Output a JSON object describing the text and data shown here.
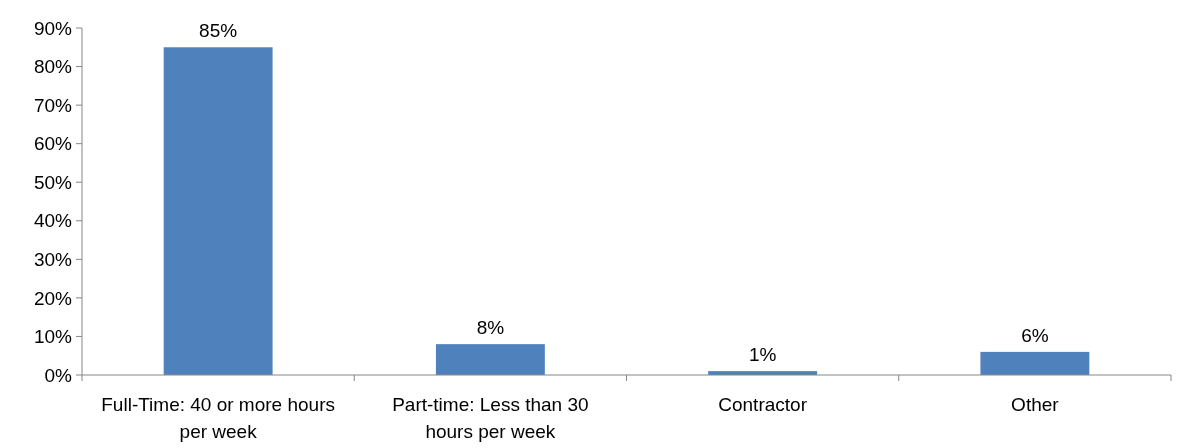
{
  "chart_data": {
    "type": "bar",
    "categories": [
      "Full-Time: 40 or more hours per week",
      "Part-time: Less than 30 hours per week",
      "Contractor",
      "Other"
    ],
    "values": [
      85,
      8,
      1,
      6
    ],
    "value_labels": [
      "85%",
      "8%",
      "1%",
      "6%"
    ],
    "color": "#4f81bd",
    "ylim": [
      0,
      90
    ],
    "yticks": [
      {
        "value": 0,
        "label": "0%"
      },
      {
        "value": 10,
        "label": "10%"
      },
      {
        "value": 20,
        "label": "20%"
      },
      {
        "value": 30,
        "label": "30%"
      },
      {
        "value": 40,
        "label": "40%"
      },
      {
        "value": 50,
        "label": "50%"
      },
      {
        "value": 60,
        "label": "60%"
      },
      {
        "value": 70,
        "label": "70%"
      },
      {
        "value": 80,
        "label": "80%"
      },
      {
        "value": 90,
        "label": "90%"
      }
    ],
    "grid": false
  }
}
